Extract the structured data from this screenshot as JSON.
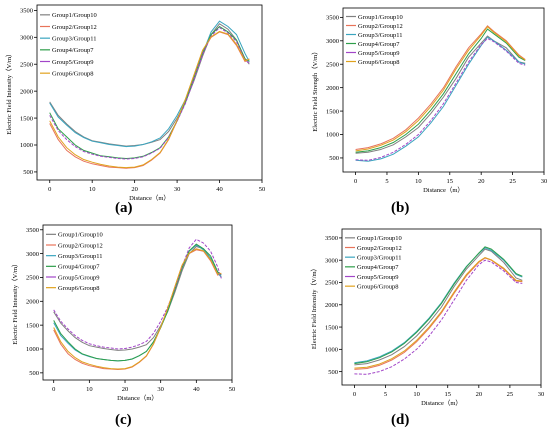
{
  "chart_data": [
    {
      "type": "line",
      "panel_label": "(a)",
      "xlabel": "Distance（m）",
      "ylabel": "Electric Field Intensity（V/m）",
      "xlim": [
        -3,
        50
      ],
      "ylim": [
        350,
        3600
      ],
      "xticks": [
        0,
        10,
        20,
        30,
        40,
        50
      ],
      "yticks": [
        500,
        1000,
        1500,
        2000,
        2500,
        3000,
        3500
      ],
      "legend_position": "top-left",
      "x": [
        0,
        2,
        4,
        6,
        8,
        10,
        12,
        14,
        16,
        18,
        20,
        22,
        24,
        26,
        28,
        30,
        32,
        34,
        36,
        38,
        40,
        42,
        44,
        46,
        47
      ],
      "series": [
        {
          "name": "Group1/Group10",
          "color": "#808080",
          "values": [
            1800,
            1550,
            1390,
            1250,
            1150,
            1080,
            1050,
            1020,
            1000,
            980,
            990,
            1010,
            1050,
            1100,
            1250,
            1500,
            1800,
            2200,
            2650,
            3050,
            3250,
            3150,
            2950,
            2600,
            2500
          ]
        },
        {
          "name": "Group2/Group12",
          "color": "#e8735a",
          "values": [
            1400,
            1100,
            900,
            780,
            700,
            650,
            620,
            590,
            580,
            570,
            580,
            620,
            720,
            850,
            1100,
            1450,
            1850,
            2300,
            2750,
            3000,
            3100,
            3050,
            2850,
            2550,
            2600
          ]
        },
        {
          "name": "Group3/Group11",
          "color": "#3aa5bf",
          "values": [
            1780,
            1520,
            1370,
            1230,
            1140,
            1070,
            1040,
            1010,
            990,
            970,
            980,
            1010,
            1060,
            1130,
            1300,
            1550,
            1850,
            2250,
            2700,
            3100,
            3300,
            3200,
            3050,
            2700,
            2550
          ]
        },
        {
          "name": "Group4/Group7",
          "color": "#2e9e4a",
          "values": [
            1600,
            1300,
            1150,
            1000,
            900,
            850,
            800,
            780,
            760,
            750,
            760,
            790,
            860,
            950,
            1150,
            1450,
            1800,
            2250,
            2700,
            3050,
            3200,
            3100,
            2950,
            2600,
            2550
          ]
        },
        {
          "name": "Group5/Group9",
          "color": "#a246c8",
          "values": [
            1550,
            1270,
            1100,
            970,
            880,
            830,
            790,
            770,
            750,
            740,
            750,
            780,
            850,
            940,
            1140,
            1440,
            1780,
            2230,
            2680,
            3020,
            3180,
            3080,
            2920,
            2580,
            2520
          ]
        },
        {
          "name": "Group6/Group8",
          "color": "#e0a21e",
          "values": [
            1450,
            1150,
            950,
            820,
            730,
            680,
            640,
            610,
            590,
            580,
            590,
            630,
            730,
            860,
            1110,
            1460,
            1860,
            2310,
            2760,
            3010,
            3110,
            3060,
            2870,
            2570,
            2590
          ]
        }
      ]
    },
    {
      "type": "line",
      "panel_label": "(b)",
      "xlabel": "Distance（m）",
      "ylabel": "Electric Field Strength（V/m）",
      "xlim": [
        -2,
        30
      ],
      "ylim": [
        200,
        3700
      ],
      "xticks": [
        0,
        5,
        10,
        15,
        20,
        25,
        30
      ],
      "yticks": [
        500,
        1000,
        1500,
        2000,
        2500,
        3000,
        3500
      ],
      "legend_position": "top-left",
      "x": [
        0,
        2,
        4,
        6,
        8,
        10,
        12,
        14,
        16,
        18,
        20,
        21,
        22,
        24,
        26,
        27
      ],
      "series": [
        {
          "name": "Group1/Group10",
          "color": "#808080",
          "values": [
            600,
            620,
            680,
            780,
            950,
            1150,
            1450,
            1800,
            2200,
            2650,
            2950,
            3100,
            3000,
            2850,
            2550,
            2520
          ]
        },
        {
          "name": "Group2/Group12",
          "color": "#e8735a",
          "values": [
            680,
            720,
            800,
            920,
            1100,
            1350,
            1650,
            2000,
            2450,
            2850,
            3150,
            3320,
            3200,
            3000,
            2700,
            2600
          ]
        },
        {
          "name": "Group3/Group11",
          "color": "#3aa5bf",
          "values": [
            450,
            430,
            480,
            580,
            750,
            950,
            1250,
            1600,
            2050,
            2500,
            2900,
            3080,
            3000,
            2800,
            2550,
            2500
          ]
        },
        {
          "name": "Group4/Group7",
          "color": "#2e9e4a",
          "values": [
            620,
            650,
            720,
            830,
            1000,
            1220,
            1520,
            1870,
            2300,
            2720,
            3050,
            3250,
            3150,
            2950,
            2650,
            2580
          ]
        },
        {
          "name": "Group5/Group9",
          "color": "#a246c8",
          "values": [
            460,
            450,
            510,
            620,
            790,
            1000,
            1300,
            1660,
            2100,
            2550,
            2920,
            3050,
            2980,
            2780,
            2520,
            2480
          ]
        },
        {
          "name": "Group6/Group8",
          "color": "#e0a21e",
          "values": [
            650,
            690,
            770,
            880,
            1060,
            1300,
            1600,
            1950,
            2400,
            2800,
            3120,
            3300,
            3180,
            2980,
            2680,
            2590
          ]
        }
      ]
    },
    {
      "type": "line",
      "panel_label": "(c)",
      "xlabel": "Distance（m）",
      "ylabel": "Electric Field Intensity（V/m）",
      "xlim": [
        -3,
        50
      ],
      "ylim": [
        350,
        3600
      ],
      "xticks": [
        0,
        10,
        20,
        30,
        40,
        50
      ],
      "yticks": [
        500,
        1000,
        1500,
        2000,
        2500,
        3000,
        3500
      ],
      "legend_position": "top-left",
      "x": [
        0,
        2,
        4,
        6,
        8,
        10,
        12,
        14,
        16,
        18,
        20,
        22,
        24,
        26,
        28,
        30,
        32,
        34,
        36,
        38,
        40,
        42,
        44,
        46,
        47
      ],
      "series": [
        {
          "name": "Group1/Group10",
          "color": "#808080",
          "values": [
            1780,
            1540,
            1380,
            1240,
            1140,
            1070,
            1040,
            1010,
            990,
            970,
            980,
            1000,
            1040,
            1090,
            1240,
            1490,
            1790,
            2190,
            2640,
            3000,
            3150,
            3100,
            2900,
            2600,
            2500
          ]
        },
        {
          "name": "Group2/Group12",
          "color": "#e8735a",
          "values": [
            1400,
            1100,
            900,
            780,
            700,
            650,
            620,
            590,
            580,
            570,
            580,
            620,
            720,
            850,
            1100,
            1450,
            1850,
            2300,
            2750,
            3000,
            3080,
            3050,
            2850,
            2550,
            2580
          ]
        },
        {
          "name": "Group3/Group11",
          "color": "#3aa5bf",
          "values": [
            1550,
            1280,
            1120,
            980,
            890,
            840,
            800,
            780,
            760,
            750,
            760,
            790,
            860,
            950,
            1150,
            1450,
            1800,
            2250,
            2700,
            3050,
            3180,
            3080,
            2900,
            2580,
            2520
          ]
        },
        {
          "name": "Group4/Group7",
          "color": "#2e9e4a",
          "values": [
            1600,
            1320,
            1150,
            1000,
            900,
            850,
            800,
            780,
            760,
            750,
            760,
            790,
            860,
            950,
            1150,
            1450,
            1800,
            2250,
            2700,
            3060,
            3200,
            3100,
            2950,
            2620,
            2550
          ]
        },
        {
          "name": "Group5/Group9",
          "color": "#a246c8",
          "values": [
            1820,
            1580,
            1420,
            1280,
            1180,
            1110,
            1070,
            1040,
            1020,
            1000,
            1010,
            1040,
            1090,
            1160,
            1330,
            1580,
            1880,
            2280,
            2730,
            3120,
            3300,
            3220,
            3050,
            2720,
            2480
          ]
        },
        {
          "name": "Group6/Group8",
          "color": "#e0a21e",
          "values": [
            1450,
            1150,
            950,
            820,
            730,
            680,
            640,
            610,
            590,
            580,
            590,
            630,
            730,
            860,
            1110,
            1460,
            1860,
            2310,
            2760,
            3010,
            3100,
            3060,
            2870,
            2570,
            2590
          ]
        }
      ]
    },
    {
      "type": "line",
      "panel_label": "(d)",
      "xlabel": "Distance（m）",
      "ylabel": "Electric Field Intensity（V/m）",
      "xlim": [
        -2,
        30
      ],
      "ylim": [
        200,
        3700
      ],
      "xticks": [
        0,
        5,
        10,
        15,
        20,
        25,
        30
      ],
      "yticks": [
        500,
        1000,
        1500,
        2000,
        2500,
        3000,
        3500
      ],
      "legend_position": "top-left",
      "x": [
        0,
        2,
        4,
        6,
        8,
        10,
        12,
        14,
        16,
        18,
        20,
        21,
        22,
        24,
        26,
        27
      ],
      "series": [
        {
          "name": "Group1/Group10",
          "color": "#808080",
          "values": [
            650,
            680,
            760,
            880,
            1060,
            1300,
            1600,
            1950,
            2400,
            2800,
            3100,
            3250,
            3200,
            2950,
            2600,
            2550
          ]
        },
        {
          "name": "Group2/Group12",
          "color": "#e8735a",
          "values": [
            550,
            570,
            640,
            760,
            930,
            1170,
            1470,
            1820,
            2250,
            2650,
            2950,
            3050,
            3000,
            2800,
            2530,
            2520
          ]
        },
        {
          "name": "Group3/Group11",
          "color": "#3aa5bf",
          "values": [
            700,
            740,
            830,
            960,
            1150,
            1400,
            1700,
            2050,
            2480,
            2860,
            3150,
            3280,
            3220,
            3000,
            2680,
            2620
          ]
        },
        {
          "name": "Group4/Group7",
          "color": "#2e9e4a",
          "values": [
            680,
            720,
            810,
            940,
            1130,
            1380,
            1680,
            2030,
            2460,
            2850,
            3160,
            3300,
            3250,
            3020,
            2700,
            2640
          ]
        },
        {
          "name": "Group5/Group9",
          "color": "#a246c8",
          "values": [
            450,
            440,
            500,
            610,
            780,
            1000,
            1300,
            1660,
            2100,
            2550,
            2900,
            3000,
            2960,
            2760,
            2500,
            2480
          ]
        },
        {
          "name": "Group6/Group8",
          "color": "#e0a21e",
          "values": [
            580,
            600,
            670,
            790,
            960,
            1200,
            1500,
            1850,
            2280,
            2680,
            2970,
            3060,
            3010,
            2820,
            2550,
            2530
          ]
        }
      ]
    }
  ]
}
